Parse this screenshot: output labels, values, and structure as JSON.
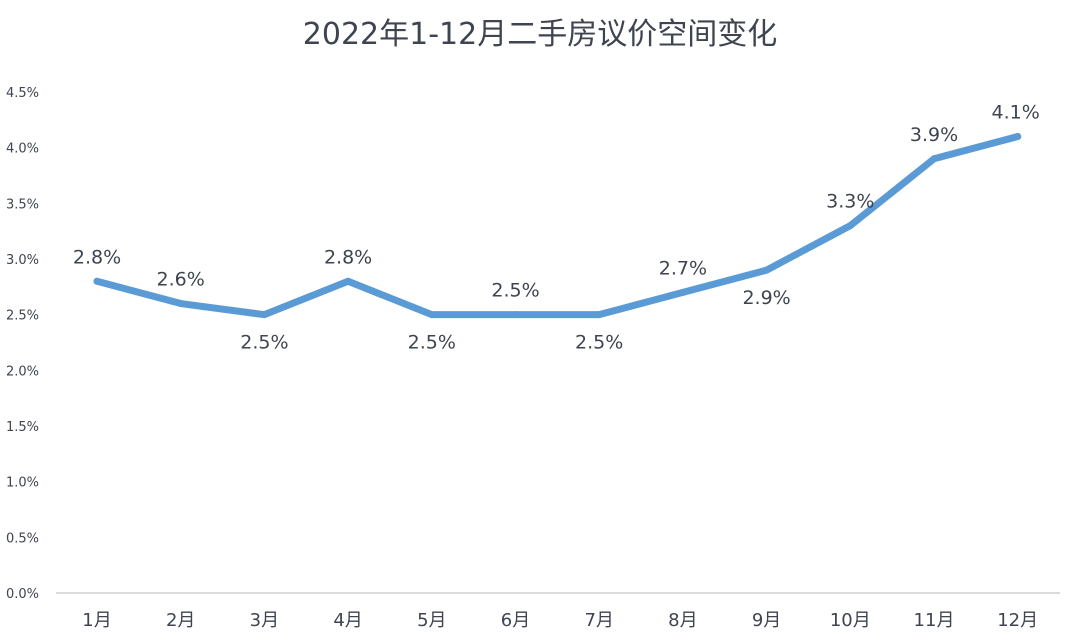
{
  "chart_data": {
    "type": "line",
    "title": "2022年1-12月二手房议价空间变化",
    "categories": [
      "1月",
      "2月",
      "3月",
      "4月",
      "5月",
      "6月",
      "7月",
      "8月",
      "9月",
      "10月",
      "11月",
      "12月"
    ],
    "series": [
      {
        "values": [
          2.8,
          2.6,
          2.5,
          2.8,
          2.5,
          2.5,
          2.5,
          2.7,
          2.9,
          3.3,
          3.9,
          4.1
        ],
        "data_labels": [
          "2.8%",
          "2.6%",
          "2.5%",
          "2.8%",
          "2.5%",
          "2.5%",
          "2.5%",
          "2.7%",
          "2.9%",
          "3.3%",
          "3.9%",
          "4.1%"
        ],
        "label_positions": [
          "above",
          "above",
          "below",
          "above",
          "below",
          "above",
          "below",
          "above",
          "below",
          "above",
          "above",
          "above"
        ],
        "color": "#5b9bd5"
      }
    ],
    "highlight": {
      "index": 11,
      "color": "#e8231f"
    },
    "y_ticks": [
      "0.0%",
      "0.5%",
      "1.0%",
      "1.5%",
      "2.0%",
      "2.5%",
      "3.0%",
      "3.5%",
      "4.0%",
      "4.5%"
    ],
    "ylim": [
      0,
      4.5
    ],
    "xlabel": "",
    "ylabel": "",
    "grid": false,
    "legend": "none"
  }
}
